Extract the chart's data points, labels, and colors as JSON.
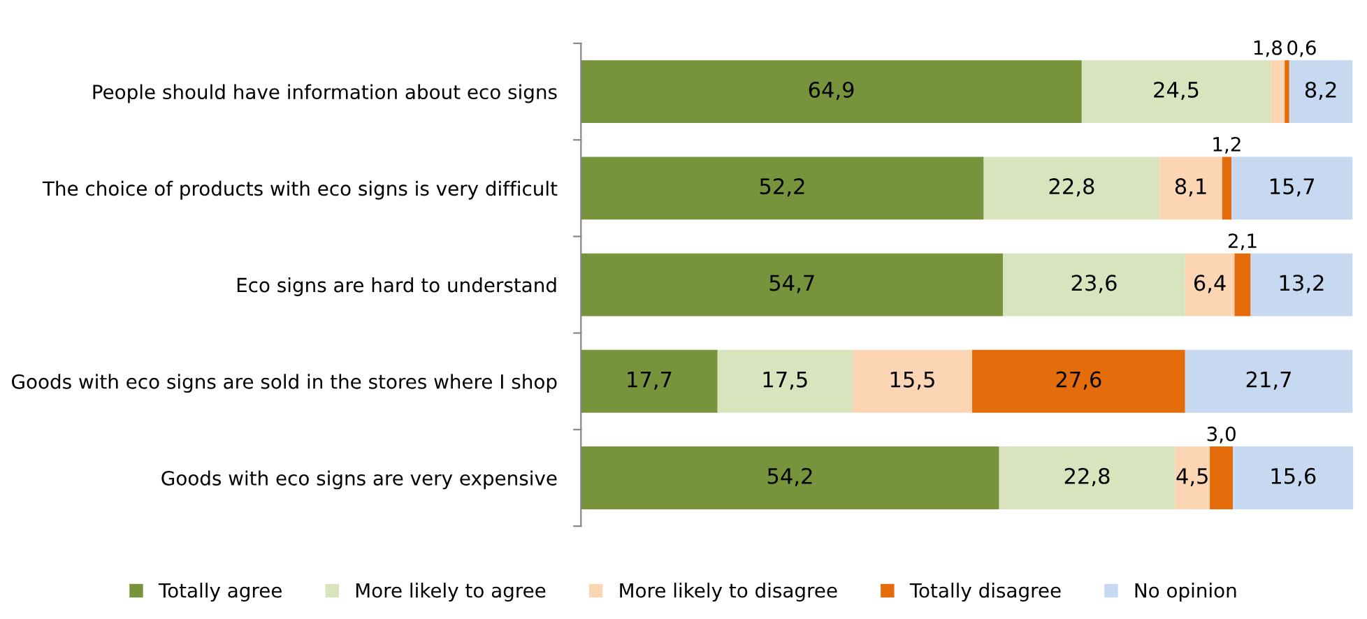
{
  "chart_data": {
    "type": "bar",
    "orientation": "horizontal",
    "stacked": true,
    "legend": "bottom",
    "categories": [
      "People should have information about eco signs",
      "The choice of products with eco signs is very difficult",
      "Eco signs are hard to understand",
      "Goods with eco signs are sold in the stores where I shop",
      "Goods with eco signs are very expensive"
    ],
    "series": [
      {
        "name": "Totally agree",
        "color": "#77933c",
        "values": [
          64.9,
          52.2,
          54.7,
          17.7,
          54.2
        ],
        "value_labels": [
          "64,9",
          "52,2",
          "54,7",
          "17,7",
          "54,2"
        ]
      },
      {
        "name": "More likely to agree",
        "color": "#d7e4bd",
        "values": [
          24.5,
          22.8,
          23.6,
          17.5,
          22.8
        ],
        "value_labels": [
          "24,5",
          "22,8",
          "23,6",
          "17,5",
          "22,8"
        ]
      },
      {
        "name": "More likely to disagree",
        "color": "#fcd5b5",
        "values": [
          1.8,
          8.1,
          6.4,
          15.5,
          4.5
        ],
        "value_labels": [
          "1,8",
          "8,1",
          "6,4",
          "15,5",
          "4,5"
        ]
      },
      {
        "name": "Totally disagree",
        "color": "#e46c0a",
        "values": [
          0.6,
          1.2,
          2.1,
          27.6,
          3.0
        ],
        "value_labels": [
          "0,6",
          "1,2",
          "2,1",
          "27,6",
          "3,0"
        ]
      },
      {
        "name": "No opinion",
        "color": "#c6d9f1",
        "values": [
          8.2,
          15.7,
          13.2,
          21.7,
          15.6
        ],
        "value_labels": [
          "8,2",
          "15,7",
          "13,2",
          "21,7",
          "15,6"
        ]
      }
    ]
  }
}
